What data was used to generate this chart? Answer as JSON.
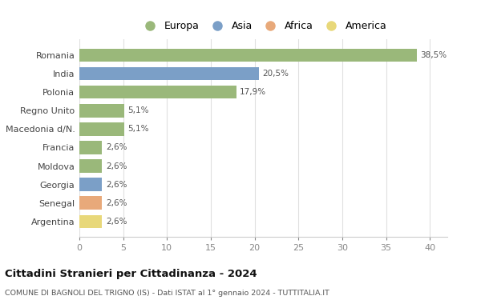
{
  "categories": [
    "Argentina",
    "Senegal",
    "Georgia",
    "Moldova",
    "Francia",
    "Macedonia d/N.",
    "Regno Unito",
    "Polonia",
    "India",
    "Romania"
  ],
  "values": [
    2.6,
    2.6,
    2.6,
    2.6,
    2.6,
    5.1,
    5.1,
    17.9,
    20.5,
    38.5
  ],
  "labels": [
    "2,6%",
    "2,6%",
    "2,6%",
    "2,6%",
    "2,6%",
    "5,1%",
    "5,1%",
    "17,9%",
    "20,5%",
    "38,5%"
  ],
  "colors": [
    "#e8d87a",
    "#e8a97a",
    "#7b9fc7",
    "#9ab87a",
    "#9ab87a",
    "#9ab87a",
    "#9ab87a",
    "#9ab87a",
    "#7b9fc7",
    "#9ab87a"
  ],
  "continent_colors": {
    "Europa": "#9ab87a",
    "Asia": "#7b9fc7",
    "Africa": "#e8a97a",
    "America": "#e8d87a"
  },
  "legend_labels": [
    "Europa",
    "Asia",
    "Africa",
    "America"
  ],
  "xlim": [
    0,
    42
  ],
  "xticks": [
    0,
    5,
    10,
    15,
    20,
    25,
    30,
    35,
    40
  ],
  "title": "Cittadini Stranieri per Cittadinanza - 2024",
  "subtitle": "COMUNE DI BAGNOLI DEL TRIGNO (IS) - Dati ISTAT al 1° gennaio 2024 - TUTTITALIA.IT",
  "bg_color": "#ffffff",
  "grid_color": "#e0e0e0",
  "bar_height": 0.72
}
